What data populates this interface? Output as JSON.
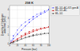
{
  "chart_data": {
    "type": "line",
    "title": "298 K",
    "xlabel": "Pressure (bar)",
    "ylabel": "Quantity of Hydrogen\nadsorbed (wt%)",
    "xlim": [
      0,
      100
    ],
    "ylim": [
      0,
      4.5
    ],
    "xticks": [
      0,
      20,
      40,
      60,
      80,
      100
    ],
    "yticks": [
      0,
      1,
      2,
      3,
      4
    ],
    "grid": true,
    "legend": "right",
    "series": [
      {
        "name": "MIL-101+AC+925 ppm Al",
        "color": "#6666ff",
        "marker": "square",
        "line_style": "solid",
        "x": [
          0,
          5,
          10,
          20,
          30,
          40,
          50,
          60,
          70,
          80,
          90,
          100
        ],
        "values": [
          0.0,
          0.3,
          0.6,
          1.1,
          1.6,
          2.1,
          2.5,
          2.9,
          3.2,
          3.5,
          3.7,
          4.0
        ]
      },
      {
        "name": "MIL-101+AC+925 ppm Al",
        "color": "#6666ff",
        "marker": "open-square",
        "line_style": "dashed",
        "x": [
          100,
          90,
          80,
          70,
          60,
          50,
          40,
          30,
          20,
          10,
          5,
          0
        ],
        "values": [
          4.0,
          3.85,
          3.65,
          3.45,
          3.15,
          2.85,
          2.55,
          2.2,
          1.6,
          0.9,
          0.35,
          0.0
        ]
      },
      {
        "name": "MIL-101+AC",
        "color": "#cc2222",
        "marker": "square",
        "line_style": "solid",
        "x": [
          0,
          5,
          10,
          20,
          30,
          40,
          50,
          60,
          70,
          80,
          90,
          100
        ],
        "values": [
          0.0,
          0.15,
          0.3,
          0.55,
          0.8,
          1.05,
          1.25,
          1.45,
          1.6,
          1.75,
          1.85,
          1.95
        ]
      },
      {
        "name": "MIL-101+AC",
        "color": "#cc2222",
        "marker": "open-square",
        "line_style": "dashed",
        "x": [
          100,
          90,
          80,
          70,
          60,
          50,
          40,
          30,
          20,
          10,
          5,
          0
        ],
        "values": [
          1.95,
          1.9,
          1.82,
          1.72,
          1.58,
          1.4,
          1.18,
          0.92,
          0.6,
          0.28,
          0.1,
          0.0
        ]
      },
      {
        "name": "MIL-101",
        "color": "#555555",
        "marker": "square",
        "line_style": "solid",
        "x": [
          0,
          5,
          10,
          20,
          30,
          40,
          50,
          60,
          70,
          80,
          90,
          100
        ],
        "values": [
          0.0,
          0.1,
          0.2,
          0.38,
          0.55,
          0.7,
          0.83,
          0.95,
          1.05,
          1.13,
          1.2,
          1.25
        ]
      },
      {
        "name": "MIL-101",
        "color": "#555555",
        "marker": "open-square",
        "line_style": "dashed",
        "x": [
          100,
          90,
          80,
          70,
          60,
          50,
          40,
          30,
          20,
          10,
          5,
          0
        ],
        "values": [
          1.25,
          1.22,
          1.17,
          1.1,
          1.0,
          0.88,
          0.73,
          0.55,
          0.33,
          0.14,
          0.05,
          0.0
        ]
      }
    ]
  }
}
